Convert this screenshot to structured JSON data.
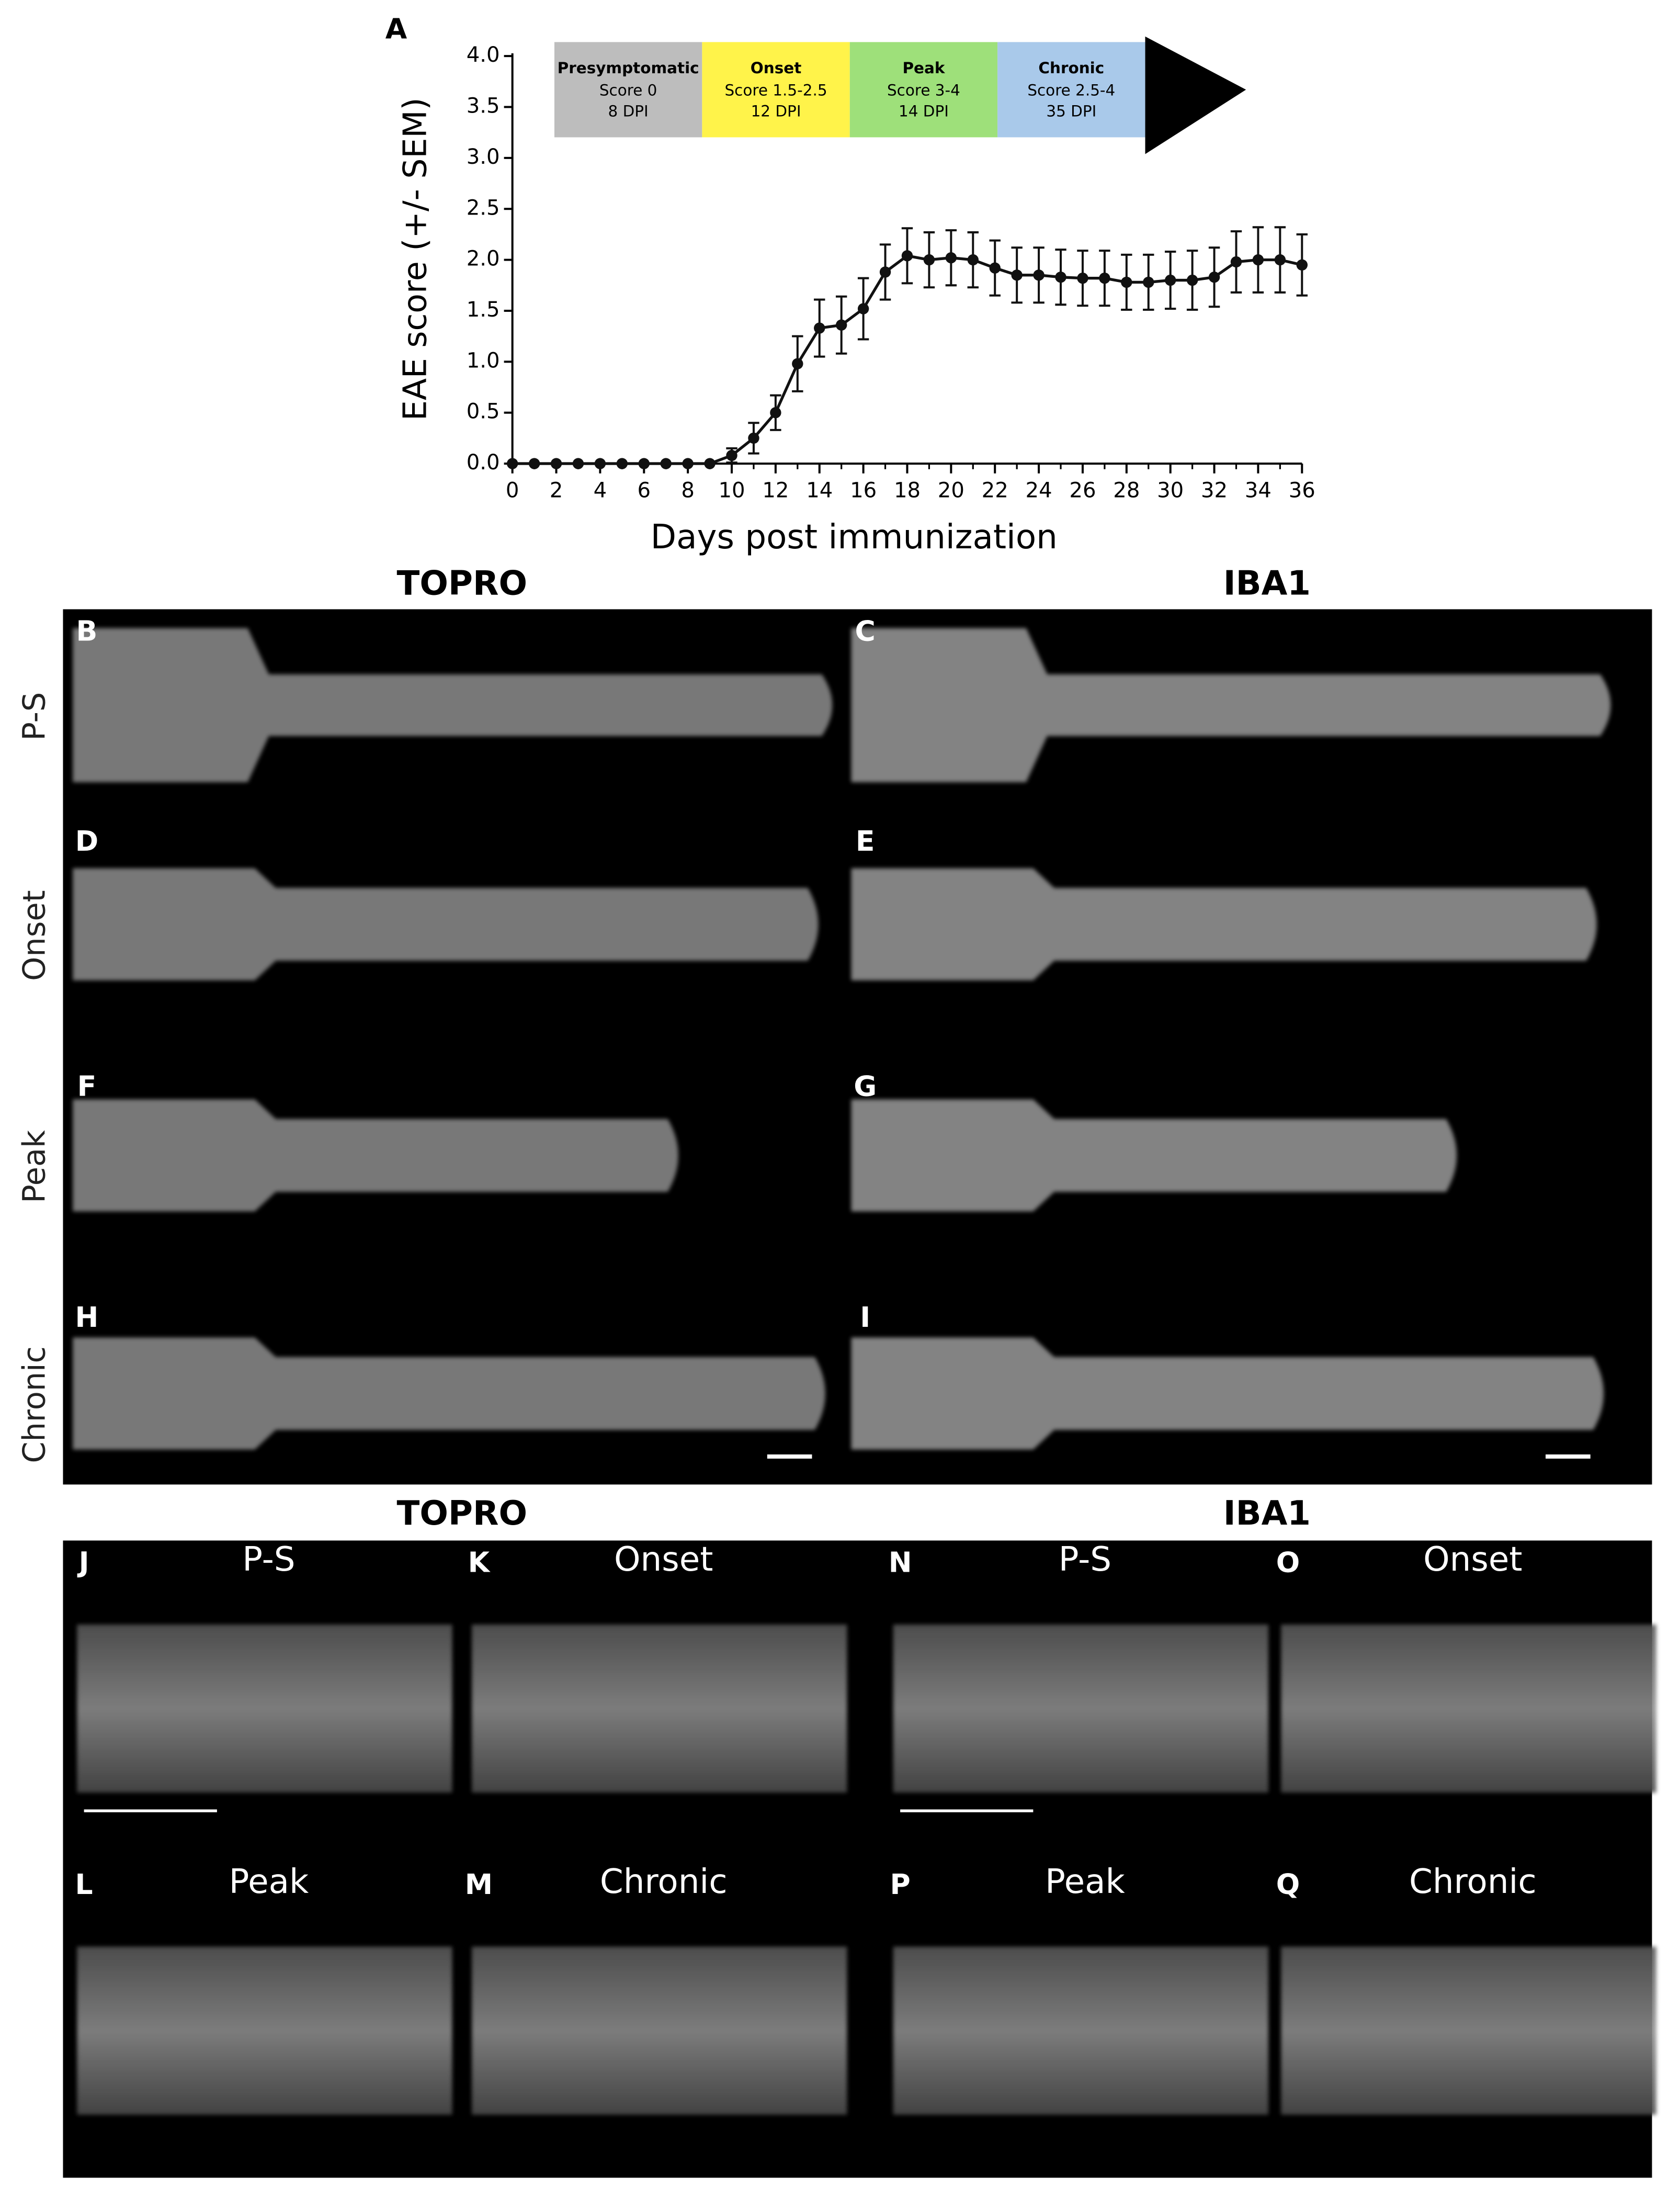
{
  "chart_data": {
    "type": "line",
    "panel_letter": "A",
    "ylabel": "EAE score (+/- SEM)",
    "xlabel": "Days post immunization",
    "x": [
      0,
      1,
      2,
      3,
      4,
      5,
      6,
      7,
      8,
      9,
      10,
      11,
      12,
      13,
      14,
      15,
      16,
      17,
      18,
      19,
      20,
      21,
      22,
      23,
      24,
      25,
      26,
      27,
      28,
      29,
      30,
      31,
      32,
      33,
      34,
      35,
      36
    ],
    "values": [
      0,
      0,
      0,
      0,
      0,
      0,
      0,
      0,
      0,
      0,
      0.08,
      0.25,
      0.5,
      0.98,
      1.33,
      1.36,
      1.52,
      1.88,
      2.04,
      2.0,
      2.02,
      2.0,
      1.92,
      1.85,
      1.85,
      1.83,
      1.82,
      1.82,
      1.78,
      1.78,
      1.8,
      1.8,
      1.83,
      1.98,
      2.0,
      2.0,
      1.95
    ],
    "errors": [
      0,
      0,
      0,
      0,
      0,
      0,
      0,
      0,
      0,
      0,
      0.07,
      0.15,
      0.17,
      0.27,
      0.28,
      0.28,
      0.3,
      0.27,
      0.27,
      0.27,
      0.27,
      0.27,
      0.27,
      0.27,
      0.27,
      0.27,
      0.27,
      0.27,
      0.27,
      0.27,
      0.28,
      0.29,
      0.29,
      0.3,
      0.32,
      0.32,
      0.3
    ],
    "color": "#111111",
    "xlim": [
      0,
      36
    ],
    "xticks": [
      0,
      2,
      4,
      6,
      8,
      10,
      12,
      14,
      16,
      18,
      20,
      22,
      24,
      26,
      28,
      30,
      32,
      34,
      36
    ],
    "ylim": [
      0,
      4
    ],
    "yticks": [
      {
        "value": 0,
        "label": "0.0"
      },
      {
        "value": 0.5,
        "label": "0.5"
      },
      {
        "value": 1,
        "label": "1.0"
      },
      {
        "value": 1.5,
        "label": "1.5"
      },
      {
        "value": 2,
        "label": "2.0"
      },
      {
        "value": 2.5,
        "label": "2.5"
      },
      {
        "value": 3,
        "label": "3.0"
      },
      {
        "value": 3.5,
        "label": "3.5"
      },
      {
        "value": 4,
        "label": "4.0"
      }
    ],
    "timeline": [
      {
        "title": "Presymptomatic",
        "score": "Score 0",
        "dpi": "8 DPI",
        "color": "#bdbdbd"
      },
      {
        "title": "Onset",
        "score": "Score 1.5-2.5",
        "dpi": "12 DPI",
        "color": "#fff34a"
      },
      {
        "title": "Peak",
        "score": "Score 3-4",
        "dpi": "14 DPI",
        "color": "#9ee07a"
      },
      {
        "title": "Chronic",
        "score": "Score 2.5-4",
        "dpi": "35 DPI",
        "color": "#a9c9ea"
      }
    ]
  },
  "overview": {
    "columns": [
      "TOPRO",
      "IBA1"
    ],
    "rows": [
      "P-S",
      "Onset",
      "Peak",
      "Chronic"
    ],
    "letters": [
      "B",
      "C",
      "D",
      "E",
      "F",
      "G",
      "H",
      "I"
    ]
  },
  "closeups": {
    "columns": [
      "TOPRO",
      "IBA1"
    ],
    "panels": [
      {
        "letter": "J",
        "label": "P-S"
      },
      {
        "letter": "K",
        "label": "Onset"
      },
      {
        "letter": "L",
        "label": "Peak"
      },
      {
        "letter": "M",
        "label": "Chronic"
      },
      {
        "letter": "N",
        "label": "P-S"
      },
      {
        "letter": "O",
        "label": "Onset"
      },
      {
        "letter": "P",
        "label": "Peak"
      },
      {
        "letter": "Q",
        "label": "Chronic"
      }
    ]
  }
}
